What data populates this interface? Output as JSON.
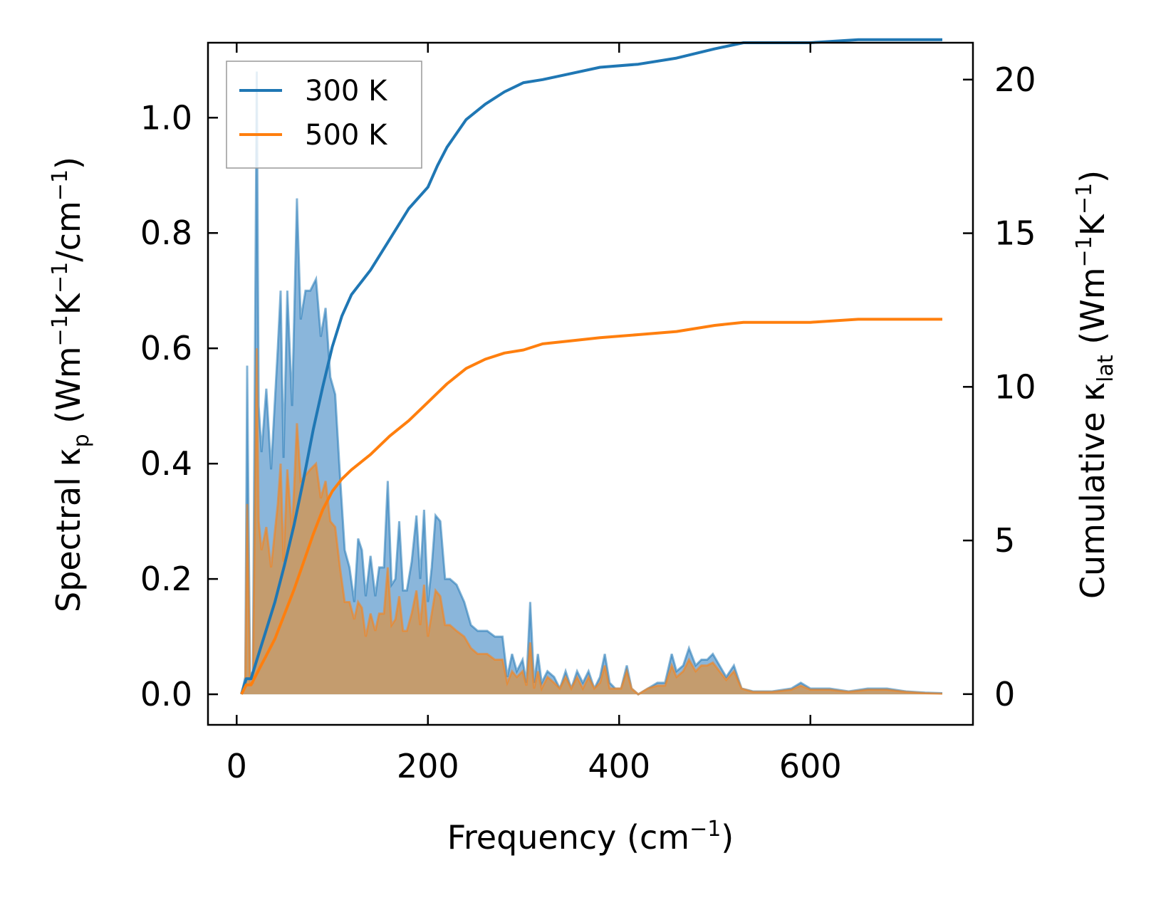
{
  "chart_data": {
    "type": "line",
    "xlabel": {
      "main": "Frequency (cm",
      "sup": "−1",
      "tail": ")"
    },
    "ylabel_left": {
      "main": "Spectral κ",
      "sub": "p",
      "a": " (Wm",
      "s1": "−1",
      "b": "K",
      "s2": "−1",
      "c": "/cm",
      "s3": "−1",
      "d": ")"
    },
    "ylabel_right": {
      "main": "Cumulative κ",
      "sub": "lat",
      "a": " (Wm",
      "s1": "−1",
      "b": "K",
      "s2": "−1",
      "c": ")"
    },
    "xlim": [
      -30,
      770
    ],
    "ylim_left": [
      -0.053,
      1.13
    ],
    "ylim_right": [
      -1.0,
      21.2
    ],
    "x_ticks": [
      0,
      200,
      400,
      600
    ],
    "x_tick_labels": [
      "0",
      "200",
      "400",
      "600"
    ],
    "y_left_ticks": [
      0.0,
      0.2,
      0.4,
      0.6,
      0.8,
      1.0
    ],
    "y_left_tick_labels": [
      "0.0",
      "0.2",
      "0.4",
      "0.6",
      "0.8",
      "1.0"
    ],
    "y_right_ticks": [
      0,
      5,
      10,
      15,
      20
    ],
    "y_right_tick_labels": [
      "0",
      "5",
      "10",
      "15",
      "20"
    ],
    "legend_position": "top-left",
    "series": [
      {
        "name": "300 K",
        "color": "#1f77b4",
        "fill_color": "#8ab6db",
        "spectral": [
          [
            5,
            0
          ],
          [
            9,
            0.03
          ],
          [
            11,
            0.57
          ],
          [
            14,
            0.03
          ],
          [
            17,
            0.04
          ],
          [
            21,
            1.08
          ],
          [
            23,
            0.5
          ],
          [
            26,
            0.42
          ],
          [
            31,
            0.53
          ],
          [
            36,
            0.39
          ],
          [
            43,
            0.6
          ],
          [
            46,
            0.7
          ],
          [
            49,
            0.41
          ],
          [
            53,
            0.7
          ],
          [
            58,
            0.5
          ],
          [
            63,
            0.86
          ],
          [
            67,
            0.65
          ],
          [
            72,
            0.7
          ],
          [
            77,
            0.7
          ],
          [
            83,
            0.72
          ],
          [
            88,
            0.62
          ],
          [
            93,
            0.67
          ],
          [
            98,
            0.55
          ],
          [
            103,
            0.52
          ],
          [
            108,
            0.38
          ],
          [
            113,
            0.25
          ],
          [
            118,
            0.22
          ],
          [
            123,
            0.16
          ],
          [
            127,
            0.27
          ],
          [
            131,
            0.25
          ],
          [
            135,
            0.17
          ],
          [
            140,
            0.24
          ],
          [
            145,
            0.17
          ],
          [
            149,
            0.22
          ],
          [
            154,
            0.22
          ],
          [
            158,
            0.37
          ],
          [
            162,
            0.19
          ],
          [
            166,
            0.2
          ],
          [
            170,
            0.3
          ],
          [
            174,
            0.18
          ],
          [
            178,
            0.18
          ],
          [
            183,
            0.23
          ],
          [
            188,
            0.31
          ],
          [
            192,
            0.2
          ],
          [
            196,
            0.32
          ],
          [
            200,
            0.16
          ],
          [
            204,
            0.22
          ],
          [
            208,
            0.31
          ],
          [
            213,
            0.3
          ],
          [
            218,
            0.2
          ],
          [
            223,
            0.2
          ],
          [
            230,
            0.19
          ],
          [
            238,
            0.16
          ],
          [
            245,
            0.12
          ],
          [
            252,
            0.11
          ],
          [
            262,
            0.11
          ],
          [
            270,
            0.1
          ],
          [
            278,
            0.1
          ],
          [
            283,
            0.03
          ],
          [
            288,
            0.07
          ],
          [
            293,
            0.04
          ],
          [
            299,
            0.06
          ],
          [
            303,
            0.02
          ],
          [
            307,
            0.16
          ],
          [
            311,
            0.02
          ],
          [
            315,
            0.07
          ],
          [
            319,
            0.02
          ],
          [
            325,
            0.04
          ],
          [
            332,
            0.03
          ],
          [
            338,
            0.01
          ],
          [
            344,
            0.04
          ],
          [
            350,
            0.01
          ],
          [
            356,
            0.04
          ],
          [
            362,
            0.02
          ],
          [
            368,
            0.04
          ],
          [
            374,
            0.01
          ],
          [
            380,
            0.03
          ],
          [
            385,
            0.07
          ],
          [
            390,
            0.02
          ],
          [
            396,
            0.01
          ],
          [
            402,
            0.01
          ],
          [
            408,
            0.05
          ],
          [
            413,
            0.01
          ],
          [
            420,
            0.0
          ],
          [
            430,
            0.01
          ],
          [
            440,
            0.02
          ],
          [
            448,
            0.02
          ],
          [
            455,
            0.07
          ],
          [
            460,
            0.04
          ],
          [
            467,
            0.05
          ],
          [
            473,
            0.08
          ],
          [
            480,
            0.05
          ],
          [
            486,
            0.06
          ],
          [
            492,
            0.06
          ],
          [
            498,
            0.07
          ],
          [
            505,
            0.05
          ],
          [
            512,
            0.03
          ],
          [
            520,
            0.05
          ],
          [
            528,
            0.01
          ],
          [
            540,
            0.005
          ],
          [
            560,
            0.005
          ],
          [
            580,
            0.01
          ],
          [
            590,
            0.02
          ],
          [
            600,
            0.01
          ],
          [
            620,
            0.01
          ],
          [
            640,
            0.005
          ],
          [
            660,
            0.01
          ],
          [
            680,
            0.01
          ],
          [
            700,
            0.005
          ],
          [
            720,
            0.003
          ],
          [
            738,
            0.002
          ]
        ],
        "cumulative": [
          [
            5,
            0
          ],
          [
            10,
            0.5
          ],
          [
            15,
            0.5
          ],
          [
            20,
            1.0
          ],
          [
            25,
            1.5
          ],
          [
            30,
            2.0
          ],
          [
            40,
            3.0
          ],
          [
            50,
            4.2
          ],
          [
            60,
            5.5
          ],
          [
            70,
            7.0
          ],
          [
            80,
            8.6
          ],
          [
            90,
            10.0
          ],
          [
            100,
            11.3
          ],
          [
            110,
            12.3
          ],
          [
            120,
            13.0
          ],
          [
            140,
            13.8
          ],
          [
            160,
            14.8
          ],
          [
            180,
            15.8
          ],
          [
            200,
            16.5
          ],
          [
            210,
            17.2
          ],
          [
            220,
            17.8
          ],
          [
            240,
            18.7
          ],
          [
            260,
            19.2
          ],
          [
            280,
            19.6
          ],
          [
            300,
            19.9
          ],
          [
            320,
            20.0
          ],
          [
            350,
            20.2
          ],
          [
            380,
            20.4
          ],
          [
            420,
            20.5
          ],
          [
            460,
            20.7
          ],
          [
            500,
            21.0
          ],
          [
            530,
            21.2
          ],
          [
            560,
            21.2
          ],
          [
            600,
            21.2
          ],
          [
            650,
            21.3
          ],
          [
            700,
            21.3
          ],
          [
            738,
            21.3
          ]
        ]
      },
      {
        "name": "500 K",
        "color": "#ff7f0e",
        "fill_color": "#c49c6e",
        "spectral": [
          [
            5,
            0
          ],
          [
            9,
            0.02
          ],
          [
            11,
            0.33
          ],
          [
            14,
            0.02
          ],
          [
            17,
            0.02
          ],
          [
            21,
            0.6
          ],
          [
            23,
            0.3
          ],
          [
            26,
            0.25
          ],
          [
            31,
            0.29
          ],
          [
            36,
            0.22
          ],
          [
            43,
            0.33
          ],
          [
            46,
            0.4
          ],
          [
            49,
            0.23
          ],
          [
            53,
            0.39
          ],
          [
            58,
            0.28
          ],
          [
            63,
            0.47
          ],
          [
            67,
            0.37
          ],
          [
            72,
            0.38
          ],
          [
            77,
            0.39
          ],
          [
            83,
            0.4
          ],
          [
            88,
            0.34
          ],
          [
            93,
            0.37
          ],
          [
            98,
            0.3
          ],
          [
            103,
            0.29
          ],
          [
            108,
            0.22
          ],
          [
            113,
            0.16
          ],
          [
            118,
            0.16
          ],
          [
            123,
            0.13
          ],
          [
            127,
            0.16
          ],
          [
            131,
            0.15
          ],
          [
            135,
            0.1
          ],
          [
            140,
            0.14
          ],
          [
            145,
            0.11
          ],
          [
            149,
            0.14
          ],
          [
            154,
            0.14
          ],
          [
            158,
            0.22
          ],
          [
            162,
            0.12
          ],
          [
            166,
            0.13
          ],
          [
            170,
            0.17
          ],
          [
            174,
            0.11
          ],
          [
            178,
            0.11
          ],
          [
            183,
            0.14
          ],
          [
            188,
            0.18
          ],
          [
            192,
            0.12
          ],
          [
            196,
            0.19
          ],
          [
            200,
            0.1
          ],
          [
            204,
            0.14
          ],
          [
            208,
            0.18
          ],
          [
            213,
            0.17
          ],
          [
            218,
            0.12
          ],
          [
            223,
            0.12
          ],
          [
            230,
            0.11
          ],
          [
            238,
            0.1
          ],
          [
            245,
            0.08
          ],
          [
            252,
            0.07
          ],
          [
            262,
            0.07
          ],
          [
            270,
            0.06
          ],
          [
            278,
            0.06
          ],
          [
            283,
            0.02
          ],
          [
            288,
            0.04
          ],
          [
            293,
            0.03
          ],
          [
            299,
            0.04
          ],
          [
            303,
            0.015
          ],
          [
            307,
            0.09
          ],
          [
            311,
            0.01
          ],
          [
            315,
            0.04
          ],
          [
            319,
            0.01
          ],
          [
            325,
            0.03
          ],
          [
            332,
            0.02
          ],
          [
            338,
            0.01
          ],
          [
            344,
            0.03
          ],
          [
            350,
            0.01
          ],
          [
            356,
            0.03
          ],
          [
            362,
            0.01
          ],
          [
            368,
            0.03
          ],
          [
            374,
            0.01
          ],
          [
            380,
            0.02
          ],
          [
            385,
            0.05
          ],
          [
            390,
            0.01
          ],
          [
            396,
            0.01
          ],
          [
            402,
            0.01
          ],
          [
            408,
            0.04
          ],
          [
            413,
            0.01
          ],
          [
            420,
            0.0
          ],
          [
            430,
            0.01
          ],
          [
            440,
            0.015
          ],
          [
            448,
            0.015
          ],
          [
            455,
            0.05
          ],
          [
            460,
            0.03
          ],
          [
            467,
            0.04
          ],
          [
            473,
            0.06
          ],
          [
            480,
            0.04
          ],
          [
            486,
            0.05
          ],
          [
            492,
            0.05
          ],
          [
            498,
            0.055
          ],
          [
            505,
            0.04
          ],
          [
            512,
            0.025
          ],
          [
            520,
            0.04
          ],
          [
            528,
            0.01
          ],
          [
            540,
            0.004
          ],
          [
            560,
            0.004
          ],
          [
            580,
            0.008
          ],
          [
            590,
            0.015
          ],
          [
            600,
            0.008
          ],
          [
            620,
            0.008
          ],
          [
            640,
            0.004
          ],
          [
            660,
            0.008
          ],
          [
            680,
            0.008
          ],
          [
            700,
            0.004
          ],
          [
            720,
            0.002
          ],
          [
            738,
            0.001
          ]
        ],
        "cumulative": [
          [
            5,
            0
          ],
          [
            10,
            0.3
          ],
          [
            15,
            0.3
          ],
          [
            20,
            0.6
          ],
          [
            25,
            0.9
          ],
          [
            30,
            1.2
          ],
          [
            40,
            1.8
          ],
          [
            50,
            2.6
          ],
          [
            60,
            3.4
          ],
          [
            70,
            4.3
          ],
          [
            80,
            5.2
          ],
          [
            90,
            6.0
          ],
          [
            100,
            6.6
          ],
          [
            110,
            7.0
          ],
          [
            120,
            7.3
          ],
          [
            140,
            7.8
          ],
          [
            160,
            8.4
          ],
          [
            180,
            8.9
          ],
          [
            200,
            9.5
          ],
          [
            210,
            9.8
          ],
          [
            220,
            10.1
          ],
          [
            240,
            10.6
          ],
          [
            260,
            10.9
          ],
          [
            280,
            11.1
          ],
          [
            300,
            11.2
          ],
          [
            320,
            11.4
          ],
          [
            350,
            11.5
          ],
          [
            380,
            11.6
          ],
          [
            420,
            11.7
          ],
          [
            460,
            11.8
          ],
          [
            500,
            12.0
          ],
          [
            530,
            12.1
          ],
          [
            560,
            12.1
          ],
          [
            600,
            12.1
          ],
          [
            650,
            12.2
          ],
          [
            700,
            12.2
          ],
          [
            738,
            12.2
          ]
        ]
      }
    ]
  }
}
